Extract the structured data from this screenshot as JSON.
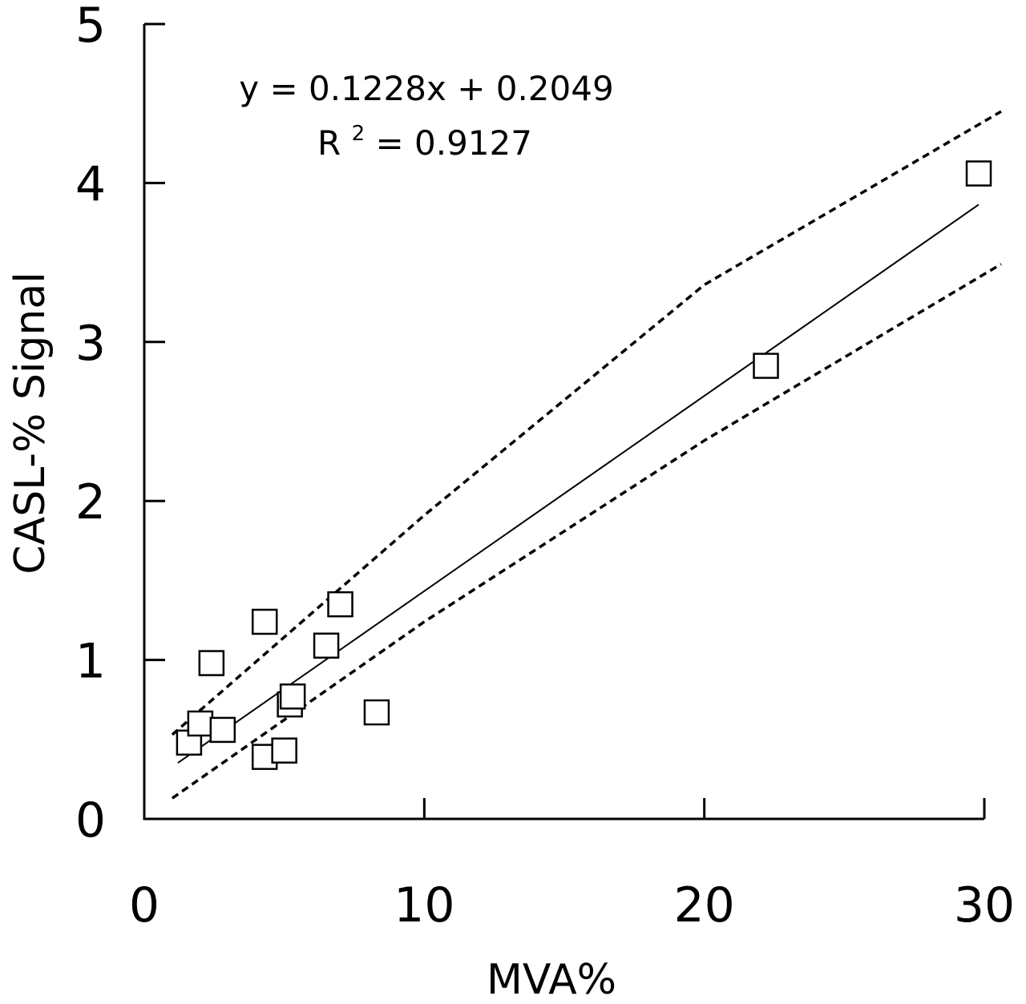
{
  "chart_data": {
    "type": "scatter",
    "title": "",
    "xlabel": "MVA%",
    "ylabel": "CASL-% Signal",
    "xlim": [
      0,
      30
    ],
    "ylim": [
      0,
      5
    ],
    "xticks": [
      "0",
      "10",
      "20",
      "30"
    ],
    "yticks": [
      "0",
      "1",
      "2",
      "3",
      "4",
      "5"
    ],
    "grid": false,
    "points": [
      {
        "x": 1.6,
        "y": 0.48
      },
      {
        "x": 2.0,
        "y": 0.6
      },
      {
        "x": 2.4,
        "y": 0.98
      },
      {
        "x": 2.8,
        "y": 0.56
      },
      {
        "x": 4.3,
        "y": 1.24
      },
      {
        "x": 4.3,
        "y": 0.39
      },
      {
        "x": 5.0,
        "y": 0.43
      },
      {
        "x": 5.2,
        "y": 0.72
      },
      {
        "x": 5.3,
        "y": 0.77
      },
      {
        "x": 6.5,
        "y": 1.09
      },
      {
        "x": 7.0,
        "y": 1.35
      },
      {
        "x": 8.3,
        "y": 0.67
      },
      {
        "x": 22.2,
        "y": 2.85
      },
      {
        "x": 29.8,
        "y": 4.06
      }
    ],
    "fit": {
      "slope": 0.1228,
      "intercept": 0.2049,
      "x_range": [
        1.2,
        29.8
      ]
    },
    "confidence_band": {
      "upper": [
        [
          1.0,
          0.53
        ],
        [
          10.0,
          1.91
        ],
        [
          20.0,
          3.36
        ],
        [
          30.6,
          4.45
        ]
      ],
      "lower": [
        [
          1.0,
          0.13
        ],
        [
          10.0,
          1.24
        ],
        [
          20.0,
          2.38
        ],
        [
          30.6,
          3.49
        ]
      ]
    },
    "annotations": {
      "equation": "y = 0.1228x + 0.2049",
      "r2_prefix": "R",
      "r2_exponent": "2",
      "r2_value": " = 0.9127"
    }
  }
}
